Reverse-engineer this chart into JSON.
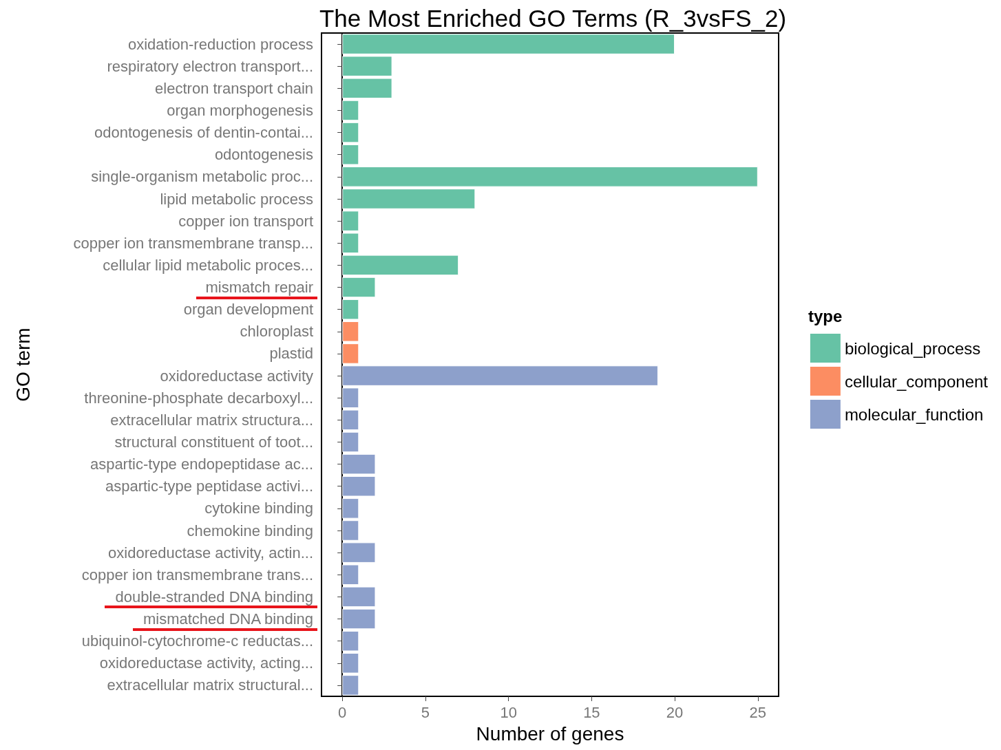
{
  "chart_data": {
    "type": "bar",
    "orientation": "horizontal",
    "title": "The Most Enriched GO Terms (R_3vsFS_2)",
    "xlabel": "Number of genes",
    "ylabel": "GO term",
    "legend_title": "type",
    "legend": "right",
    "categories": [
      "oxidation-reduction process",
      "respiratory electron transport...",
      "electron transport chain",
      "organ morphogenesis",
      "odontogenesis of dentin-contai...",
      "odontogenesis",
      "single-organism metabolic proc...",
      "lipid metabolic process",
      "copper ion transport",
      "copper ion transmembrane transp...",
      "cellular lipid metabolic proces...",
      "mismatch repair",
      "organ development",
      "chloroplast",
      "plastid",
      "oxidoreductase activity",
      "threonine-phosphate decarboxyl...",
      "extracellular matrix structura...",
      "structural constituent of toot...",
      "aspartic-type endopeptidase ac...",
      "aspartic-type peptidase activi...",
      "cytokine binding",
      "chemokine binding",
      "oxidoreductase activity, actin...",
      "copper ion transmembrane trans...",
      "double-stranded DNA binding",
      "mismatched DNA binding",
      "ubiquinol-cytochrome-c reductas...",
      "oxidoreductase activity, acting...",
      "extracellular matrix structural..."
    ],
    "series": [
      {
        "name": "biological_process",
        "color": "#66c2a5",
        "values": [
          20,
          3,
          3,
          1,
          1,
          1,
          25,
          8,
          1,
          1,
          7,
          2,
          1,
          null,
          null,
          null,
          null,
          null,
          null,
          null,
          null,
          null,
          null,
          null,
          null,
          null,
          null,
          null,
          null,
          null
        ]
      },
      {
        "name": "cellular_component",
        "color": "#fc8d62",
        "values": [
          null,
          null,
          null,
          null,
          null,
          null,
          null,
          null,
          null,
          null,
          null,
          null,
          null,
          1,
          1,
          null,
          null,
          null,
          null,
          null,
          null,
          null,
          null,
          null,
          null,
          null,
          null,
          null,
          null,
          null
        ]
      },
      {
        "name": "molecular_function",
        "color": "#8da0cb",
        "values": [
          null,
          null,
          null,
          null,
          null,
          null,
          null,
          null,
          null,
          null,
          null,
          null,
          null,
          null,
          null,
          19,
          1,
          1,
          1,
          2,
          2,
          1,
          1,
          2,
          1,
          2,
          2,
          1,
          1,
          1
        ]
      }
    ],
    "xlim": [
      -1.25,
      26.25
    ],
    "xticks": [
      0,
      5,
      10,
      15,
      20,
      25
    ]
  }
}
